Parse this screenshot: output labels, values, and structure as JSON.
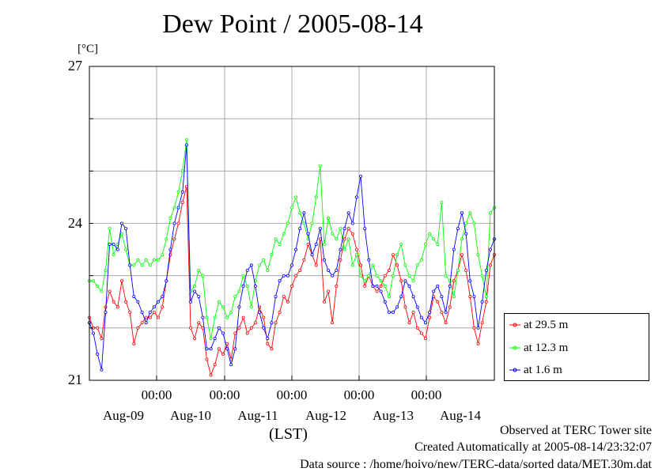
{
  "title": "Dew Point / 2005-08-14",
  "y_unit": "[°C]",
  "x_unit": "(LST)",
  "footer": {
    "observed": "Observed at TERC Tower site",
    "created": "Created Automatically at 2005-08-14/23:32:07",
    "source": "Data source : /home/hoivo/new/TERC-data/sorted  data/MET.30m.dat"
  },
  "chart_data": {
    "type": "line",
    "title": "Dew Point / 2005-08-14",
    "ylabel": "[°C]",
    "xlabel": "(LST)",
    "ylim": [
      21,
      27
    ],
    "yticks": [
      "21",
      "24",
      "27"
    ],
    "xticks_time": [
      "00:00",
      "00:00",
      "00:00",
      "00:00",
      "00:00"
    ],
    "xticks_day": [
      "Aug-09",
      "Aug-10",
      "Aug-11",
      "Aug-12",
      "Aug-13",
      "Aug-14"
    ],
    "grid": true,
    "legend_position": "right-bottom",
    "x_hours_per_point": 2,
    "series": [
      {
        "name": "at 29.5 m",
        "color": "#ff0000",
        "values": [
          22.2,
          22.0,
          22.0,
          21.8,
          22.4,
          22.7,
          22.5,
          22.4,
          22.9,
          22.5,
          22.3,
          21.7,
          22.0,
          22.1,
          22.2,
          22.2,
          22.3,
          22.2,
          22.4,
          22.9,
          23.4,
          23.7,
          24.0,
          24.4,
          24.7,
          22.0,
          21.8,
          22.1,
          22.0,
          21.4,
          21.1,
          21.3,
          21.6,
          21.5,
          21.7,
          21.4,
          21.9,
          22.0,
          22.2,
          21.9,
          22.0,
          22.1,
          22.4,
          22.2,
          21.7,
          21.6,
          22.1,
          22.3,
          22.6,
          22.5,
          22.8,
          23.0,
          23.1,
          23.3,
          23.6,
          23.4,
          23.2,
          23.7,
          22.5,
          22.7,
          22.1,
          22.8,
          23.3,
          23.7,
          23.9,
          23.8,
          23.5,
          23.2,
          22.8,
          23.0,
          22.8,
          22.7,
          22.8,
          23.0,
          23.1,
          23.4,
          23.2,
          22.9,
          22.4,
          22.1,
          22.3,
          22.0,
          21.9,
          21.8,
          22.2,
          22.6,
          22.5,
          22.3,
          22.1,
          22.4,
          22.9,
          23.1,
          23.4,
          23.1,
          22.6,
          22.0,
          21.7,
          22.1,
          22.5,
          23.2,
          23.4
        ]
      },
      {
        "name": "at 12.3 m",
        "color": "#00ff00",
        "values": [
          22.9,
          22.9,
          22.8,
          22.7,
          23.1,
          23.9,
          23.4,
          23.6,
          23.8,
          23.5,
          23.2,
          23.2,
          23.3,
          23.2,
          23.3,
          23.2,
          23.3,
          23.3,
          23.4,
          23.7,
          24.1,
          24.3,
          24.6,
          25.0,
          25.6,
          22.7,
          22.8,
          23.1,
          23.0,
          22.2,
          21.8,
          22.2,
          22.5,
          22.4,
          22.2,
          22.3,
          22.6,
          22.7,
          23.0,
          22.8,
          22.4,
          22.9,
          23.2,
          23.3,
          23.1,
          23.4,
          23.7,
          23.6,
          23.8,
          24.0,
          24.3,
          24.5,
          24.2,
          24.0,
          23.7,
          24.0,
          24.5,
          25.1,
          23.6,
          24.1,
          23.8,
          23.7,
          23.9,
          23.5,
          23.7,
          23.2,
          23.4,
          23.0,
          22.9,
          23.0,
          23.2,
          23.0,
          22.9,
          22.8,
          22.6,
          23.0,
          23.4,
          23.6,
          23.2,
          23.0,
          22.9,
          23.2,
          23.3,
          23.6,
          23.8,
          23.7,
          23.6,
          24.4,
          23.0,
          22.9,
          22.6,
          23.1,
          23.7,
          24.0,
          24.2,
          24.0,
          23.4,
          23.0,
          22.6,
          24.2,
          24.3
        ]
      },
      {
        "name": "at 1.6 m",
        "color": "#0000ff",
        "values": [
          22.1,
          21.9,
          21.5,
          21.2,
          22.3,
          23.6,
          23.6,
          23.5,
          24.0,
          23.9,
          23.2,
          22.6,
          22.5,
          22.3,
          22.1,
          22.3,
          22.4,
          22.5,
          22.6,
          22.9,
          23.5,
          24.0,
          24.3,
          24.6,
          25.5,
          22.5,
          22.7,
          22.6,
          22.2,
          21.6,
          21.6,
          21.8,
          22.0,
          21.9,
          21.6,
          21.3,
          21.6,
          22.4,
          22.8,
          23.1,
          23.2,
          22.8,
          22.3,
          22.0,
          21.8,
          22.1,
          22.6,
          22.9,
          23.0,
          23.0,
          23.2,
          23.5,
          23.9,
          24.2,
          23.8,
          23.4,
          23.6,
          23.9,
          23.3,
          23.1,
          23.0,
          23.1,
          23.5,
          23.9,
          24.2,
          24.0,
          24.5,
          24.9,
          23.9,
          23.3,
          22.8,
          22.8,
          22.7,
          22.5,
          22.3,
          22.3,
          22.4,
          22.6,
          22.9,
          22.8,
          22.6,
          22.4,
          22.2,
          22.1,
          22.3,
          22.7,
          22.8,
          22.6,
          22.3,
          22.8,
          23.5,
          23.9,
          24.2,
          23.8,
          22.9,
          22.6,
          22.0,
          22.5,
          23.1,
          23.5,
          23.7
        ]
      }
    ]
  }
}
